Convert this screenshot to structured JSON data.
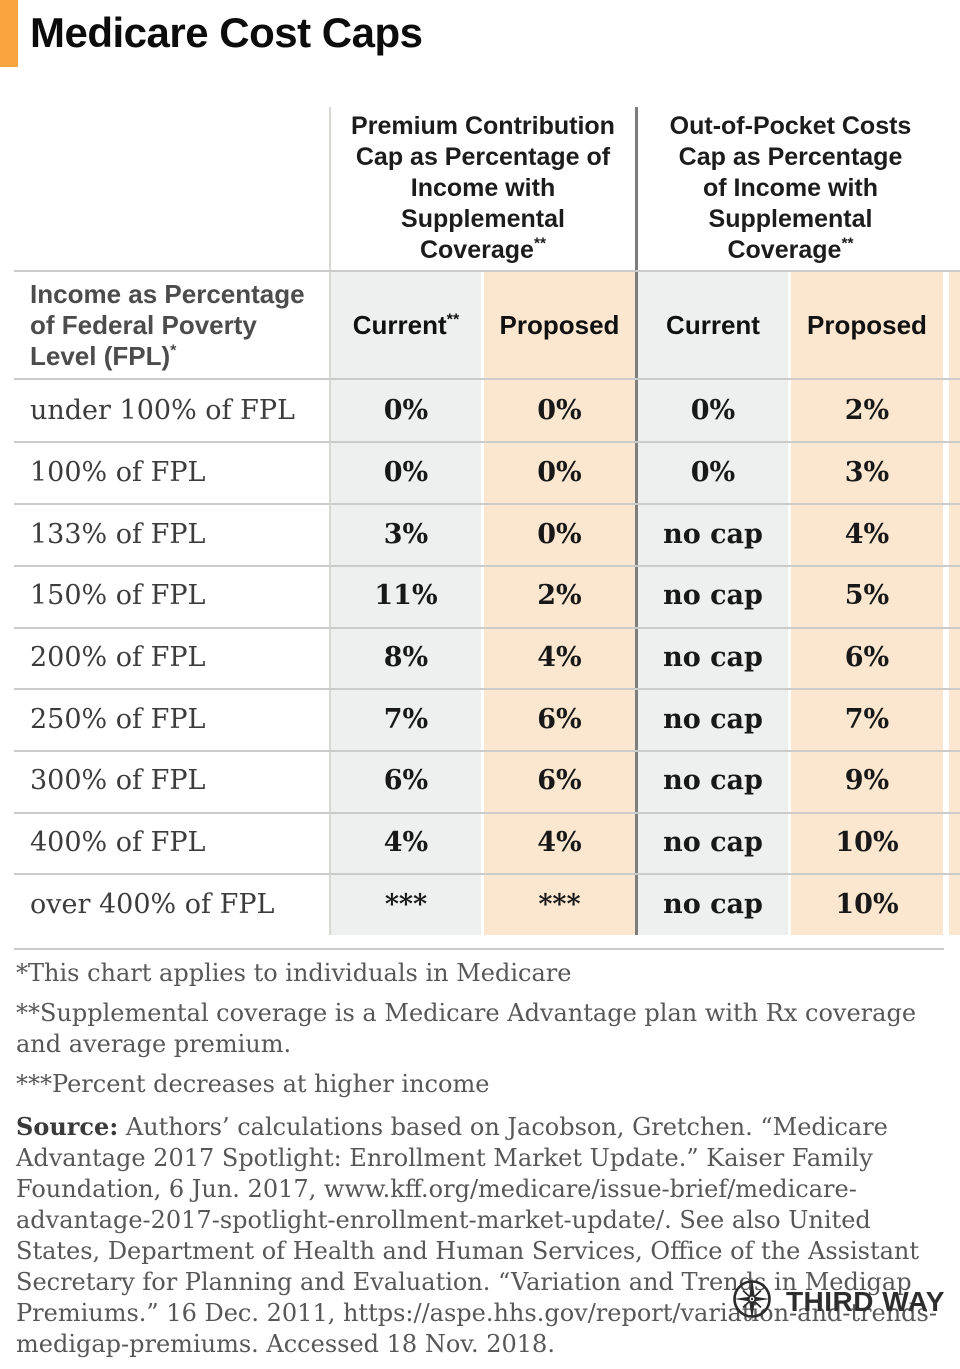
{
  "title": "Medicare Cost Caps",
  "colors": {
    "accent_orange": "#F9A43E",
    "current_column_bg": "#EEF0EF",
    "proposed_column_bg": "#FBE7CF"
  },
  "chart_data": {
    "type": "table",
    "title": "Medicare Cost Caps",
    "row_header": "Income as Percentage of Federal Poverty Level (FPL)*",
    "column_groups": [
      "Premium Contribution Cap as Percentage of Income with Supplemental Coverage**",
      "Out-of-Pocket Costs Cap as Percentage of Income with Supplemental Coverage**"
    ],
    "columns": [
      "Current**",
      "Proposed",
      "Current",
      "Proposed"
    ],
    "rows": [
      [
        "under 100% of FPL",
        "0%",
        "0%",
        "0%",
        "2%"
      ],
      [
        "100% of FPL",
        "0%",
        "0%",
        "0%",
        "3%"
      ],
      [
        "133% of FPL",
        "3%",
        "0%",
        "no cap",
        "4%"
      ],
      [
        "150% of FPL",
        "11%",
        "2%",
        "no cap",
        "5%"
      ],
      [
        "200% of FPL",
        "8%",
        "4%",
        "no cap",
        "6%"
      ],
      [
        "250% of FPL",
        "7%",
        "6%",
        "no cap",
        "7%"
      ],
      [
        "300% of FPL",
        "6%",
        "6%",
        "no cap",
        "9%"
      ],
      [
        "400% of FPL",
        "4%",
        "4%",
        "no cap",
        "10%"
      ],
      [
        "over 400% of FPL",
        "***",
        "***",
        "no cap",
        "10%"
      ]
    ]
  },
  "footnotes": [
    "*This chart applies to individuals in Medicare",
    "**Supplemental coverage is a Medicare Advantage plan with Rx coverage and average premium.",
    "***Percent decreases at higher income"
  ],
  "source": {
    "label": "Source:",
    "text": " Authors’ calculations based on Jacobson, Gretchen. “Medicare Advantage 2017 Spotlight: Enrollment Market Update.” Kaiser Family Foundation, 6 Jun. 2017, www.kff.org/medicare/issue-brief/medicare-advantage-2017-spotlight-enrollment-market-update/. See also United States, Department of Health and Human Services, Office of the Assistant Secretary for Planning and Evaluation. “Variation and Trends in Medigap Premiums.” 16 Dec. 2011, https://aspe.hhs.gov/report/variation-and-trends-medigap-premiums. Accessed 18 Nov. 2018."
  },
  "logo": {
    "text": "THIRD WAY"
  }
}
